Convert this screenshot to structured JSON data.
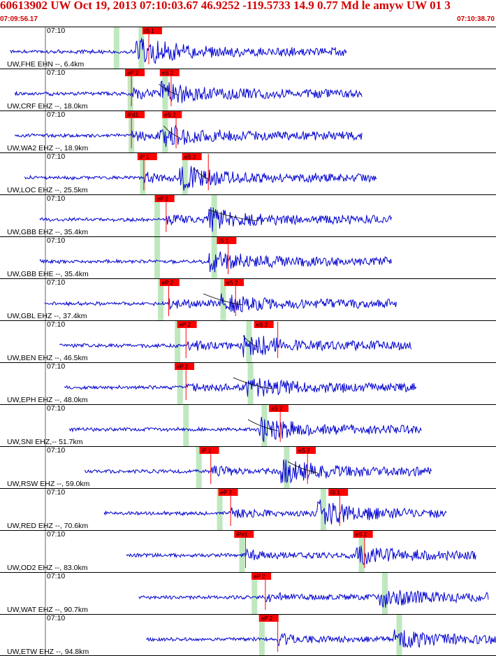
{
  "header": {
    "title": "60613902 UW Oct 19, 2013 07:10:03.67   46.9252 -119.5733 14.9 0.77 Md le amyw UW 01    3",
    "start_time": "07:09:56.17",
    "end_time": "07:10:38.70"
  },
  "colors": {
    "waveform": "#0000d0",
    "pick_box": "#ff0000",
    "pick_line": "#ff0000",
    "theoretical_band": "#bfe8bf",
    "header_text": "#d40000",
    "grid": "#000000"
  },
  "time_marker_label": "07:10",
  "traces": [
    {
      "label": "UW,FHE EHN --, 6.4km",
      "start": 0.02,
      "end": 0.7,
      "amp": 0.4,
      "seed": 11,
      "bands": [
        0.235,
        0.285
      ],
      "curve": null,
      "picks": [
        {
          "label": "iS 1",
          "pos": 0.29,
          "onset": 0.3
        }
      ]
    },
    {
      "label": "UW,CRF EHZ --, 18.0km",
      "start": 0.03,
      "end": 0.73,
      "amp": 0.3,
      "seed": 22,
      "bands": [
        0.263,
        0.333
      ],
      "curve": [
        0.32,
        0.36
      ],
      "picks": [
        {
          "label": "eP 2",
          "pos": 0.255,
          "onset": 0.265
        },
        {
          "label": "eS 2",
          "pos": 0.325,
          "onset": 0.345
        }
      ]
    },
    {
      "label": "UW,WA2 EHZ --, 18.9km",
      "start": 0.03,
      "end": 0.73,
      "amp": 0.3,
      "seed": 33,
      "bands": [
        0.265,
        0.333
      ],
      "curve": [
        0.33,
        0.36
      ],
      "picks": [
        {
          "label": "iPd1",
          "pos": 0.255,
          "onset": 0.265
        },
        {
          "label": "eS 2",
          "pos": 0.33,
          "onset": 0.355
        }
      ]
    },
    {
      "label": "UW,LOC EHZ --, 25.5km",
      "start": 0.05,
      "end": 0.76,
      "amp": 0.28,
      "seed": 44,
      "bands": [
        0.288,
        0.373
      ],
      "curve": [
        0.39,
        0.42
      ],
      "picks": [
        {
          "label": "iP 1",
          "pos": 0.28,
          "onset": 0.29
        },
        {
          "label": "eS 2",
          "pos": 0.37,
          "onset": 0.42
        }
      ]
    },
    {
      "label": "UW,GBB EHZ --, 35.4km",
      "start": 0.08,
      "end": 0.79,
      "amp": 0.28,
      "seed": 55,
      "bands": [
        0.317,
        0.432
      ],
      "curve": [
        0.42,
        0.52
      ],
      "picks": [
        {
          "label": "eP 2",
          "pos": 0.315,
          "onset": 0.335
        }
      ]
    },
    {
      "label": "UW,GBB EHE --, 35.4km",
      "start": 0.08,
      "end": 0.79,
      "amp": 0.26,
      "seed": 66,
      "bands": [
        0.317,
        0.432
      ],
      "curve": null,
      "picks": [
        {
          "label": "iS 1",
          "pos": 0.44,
          "onset": 0.46
        }
      ]
    },
    {
      "label": "UW,GBL EHZ --, 37.4km",
      "start": 0.09,
      "end": 0.8,
      "amp": 0.26,
      "seed": 77,
      "bands": [
        0.324,
        0.45
      ],
      "curve": [
        0.41,
        0.49
      ],
      "picks": [
        {
          "label": "eP 2",
          "pos": 0.325,
          "onset": 0.34
        },
        {
          "label": "eS 2",
          "pos": 0.455,
          "onset": 0.475
        }
      ]
    },
    {
      "label": "UW,BEN EHZ --, 46.5km",
      "start": 0.12,
      "end": 0.83,
      "amp": 0.28,
      "seed": 88,
      "bands": [
        0.358,
        0.502
      ],
      "curve": [
        0.49,
        0.52
      ],
      "picks": [
        {
          "label": "eP 2",
          "pos": 0.36,
          "onset": 0.375
        },
        {
          "label": "eS 2",
          "pos": 0.515,
          "onset": 0.56
        }
      ]
    },
    {
      "label": "UW,EPH EHZ --, 48.0km",
      "start": 0.13,
      "end": 0.84,
      "amp": 0.3,
      "seed": 99,
      "bands": [
        0.363,
        0.505
      ],
      "curve": [
        0.47,
        0.55
      ],
      "picks": [
        {
          "label": "eP 2",
          "pos": 0.355,
          "onset": 0.375
        }
      ]
    },
    {
      "label": "UW,SNI EHZ,-- 51.7km",
      "start": 0.14,
      "end": 0.85,
      "amp": 0.3,
      "seed": 111,
      "bands": [
        0.375,
        0.533
      ],
      "curve": [
        0.5,
        0.56
      ],
      "picks": [
        {
          "label": "eS 2",
          "pos": 0.545,
          "onset": 0.565
        }
      ]
    },
    {
      "label": "UW,RSW EHZ --, 59.0km",
      "start": 0.17,
      "end": 0.87,
      "amp": 0.3,
      "seed": 122,
      "bands": [
        0.401,
        0.578
      ],
      "curve": [
        0.58,
        0.64
      ],
      "picks": [
        {
          "label": "iP 1",
          "pos": 0.405,
          "onset": 0.425
        },
        {
          "label": "eS 2",
          "pos": 0.6,
          "onset": 0.62
        }
      ]
    },
    {
      "label": "UW,RED EHZ --, 70.6km",
      "start": 0.21,
      "end": 0.9,
      "amp": 0.3,
      "seed": 133,
      "bands": [
        0.443,
        0.652
      ],
      "curve": null,
      "picks": [
        {
          "label": "eP 2",
          "pos": 0.443,
          "onset": 0.465
        },
        {
          "label": "iS 1",
          "pos": 0.665,
          "onset": 0.685
        }
      ]
    },
    {
      "label": "UW,OD2 EHZ --, 83.0km",
      "start": 0.255,
      "end": 0.96,
      "amp": 0.2,
      "seed": 144,
      "bands": [
        0.488,
        0.729
      ],
      "curve": null,
      "picks": [
        {
          "label": "iPd1",
          "pos": 0.475,
          "onset": 0.495
        },
        {
          "label": "eS 2",
          "pos": 0.715,
          "onset": 0.735
        }
      ]
    },
    {
      "label": "UW,WAT EHZ --, 90.7km",
      "start": 0.28,
      "end": 0.985,
      "amp": 0.2,
      "seed": 155,
      "bands": [
        0.513,
        0.776
      ],
      "curve": null,
      "picks": [
        {
          "label": "eP 2",
          "pos": 0.51,
          "onset": 0.535
        }
      ]
    },
    {
      "label": "UW,ETW EHZ --, 94.8km",
      "start": 0.295,
      "end": 1.0,
      "amp": 0.2,
      "seed": 166,
      "bands": [
        0.528,
        0.805
      ],
      "curve": null,
      "picks": [
        {
          "label": "eP 2",
          "pos": 0.525,
          "onset": 0.56
        }
      ]
    }
  ]
}
